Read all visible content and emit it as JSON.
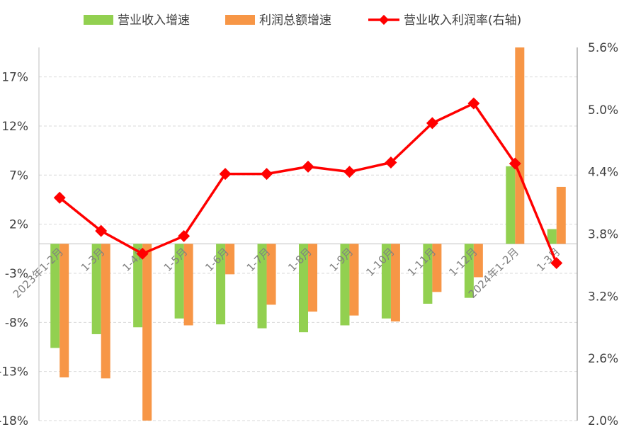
{
  "chart_data": {
    "type": "bar",
    "categories": [
      "2023年1-2月",
      "1-3月",
      "1-4月",
      "1-5月",
      "1-6月",
      "1-7月",
      "1-8月",
      "1-9月",
      "1-10月",
      "1-11月",
      "1-12月",
      "2024年1-2月",
      "1-3月"
    ],
    "series": [
      {
        "name": "营业收入增速",
        "type": "bar",
        "axis": "left",
        "color": "#92d050",
        "values": [
          -10.6,
          -9.2,
          -8.5,
          -7.6,
          -8.2,
          -8.6,
          -9.0,
          -8.3,
          -7.6,
          -6.1,
          -5.5,
          7.9,
          1.5
        ]
      },
      {
        "name": "利润总额增速",
        "type": "bar",
        "axis": "left",
        "color": "#f79646",
        "values": [
          -13.6,
          -13.7,
          -18.0,
          -8.3,
          -3.1,
          -6.2,
          -6.9,
          -7.3,
          -7.9,
          -4.9,
          -3.4,
          20.0,
          5.8
        ]
      },
      {
        "name": "营业收入利润率(右轴)",
        "type": "line",
        "axis": "right",
        "color": "#ff0000",
        "values": [
          4.15,
          3.83,
          3.61,
          3.78,
          4.38,
          4.38,
          4.45,
          4.4,
          4.49,
          4.87,
          5.06,
          4.48,
          3.52
        ]
      }
    ],
    "left_axis": {
      "ticks": [
        "17%",
        "12%",
        "7%",
        "2%",
        "-3%",
        "-8%",
        "-13%",
        "-18%"
      ],
      "range": [
        -18,
        20
      ]
    },
    "right_axis": {
      "ticks": [
        "5.6%",
        "5.0%",
        "4.4%",
        "3.8%",
        "3.2%",
        "2.6%",
        "2.0%"
      ],
      "range": [
        2.0,
        5.6
      ]
    },
    "legend": {
      "placement": "top"
    },
    "grid": true
  }
}
